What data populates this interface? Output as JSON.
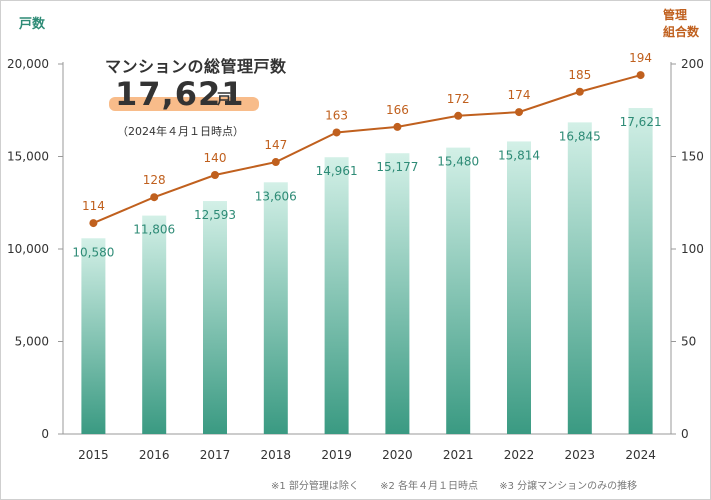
{
  "header": {
    "left_axis_title": "戸数",
    "right_axis_title": [
      "管理",
      "組合数"
    ],
    "headline": "マンションの総管理戸数",
    "total_number": "17,621",
    "total_unit": "戸",
    "as_of": "（2024年４月１日時点）"
  },
  "footnotes": [
    "※1  部分管理は除く",
    "※2  各年４月１日時点",
    "※3  分譲マンションのみの推移"
  ],
  "colors": {
    "bar_top": "#cdeee4",
    "bar_bottom": "#3a9a82",
    "bar_label": "#2e8b76",
    "line": "#c0601e",
    "axis": "#999999"
  },
  "chart_data": {
    "type": "bar+line",
    "categories": [
      "2015",
      "2016",
      "2017",
      "2018",
      "2019",
      "2020",
      "2021",
      "2022",
      "2023",
      "2024"
    ],
    "series": [
      {
        "name": "戸数",
        "type": "bar",
        "axis": "left",
        "values": [
          10580,
          11806,
          12593,
          13606,
          14961,
          15177,
          15480,
          15814,
          16845,
          17621
        ],
        "labels": [
          "10,580",
          "11,806",
          "12,593",
          "13,606",
          "14,961",
          "15,177",
          "15,480",
          "15,814",
          "16,845",
          "17,621"
        ]
      },
      {
        "name": "管理組合数",
        "type": "line",
        "axis": "right",
        "values": [
          114,
          128,
          140,
          147,
          163,
          166,
          172,
          174,
          185,
          194
        ],
        "labels": [
          "114",
          "128",
          "140",
          "147",
          "163",
          "166",
          "172",
          "174",
          "185",
          "194"
        ]
      }
    ],
    "y_left": {
      "min": 0,
      "max": 20000,
      "ticks": [
        0,
        5000,
        10000,
        15000,
        20000
      ],
      "tick_labels": [
        "0",
        "5,000",
        "10,000",
        "15,000",
        "20,000"
      ]
    },
    "y_right": {
      "min": 0,
      "max": 200,
      "ticks": [
        0,
        50,
        100,
        150,
        200
      ],
      "tick_labels": [
        "0",
        "50",
        "100",
        "150",
        "200"
      ]
    },
    "grid": false
  }
}
